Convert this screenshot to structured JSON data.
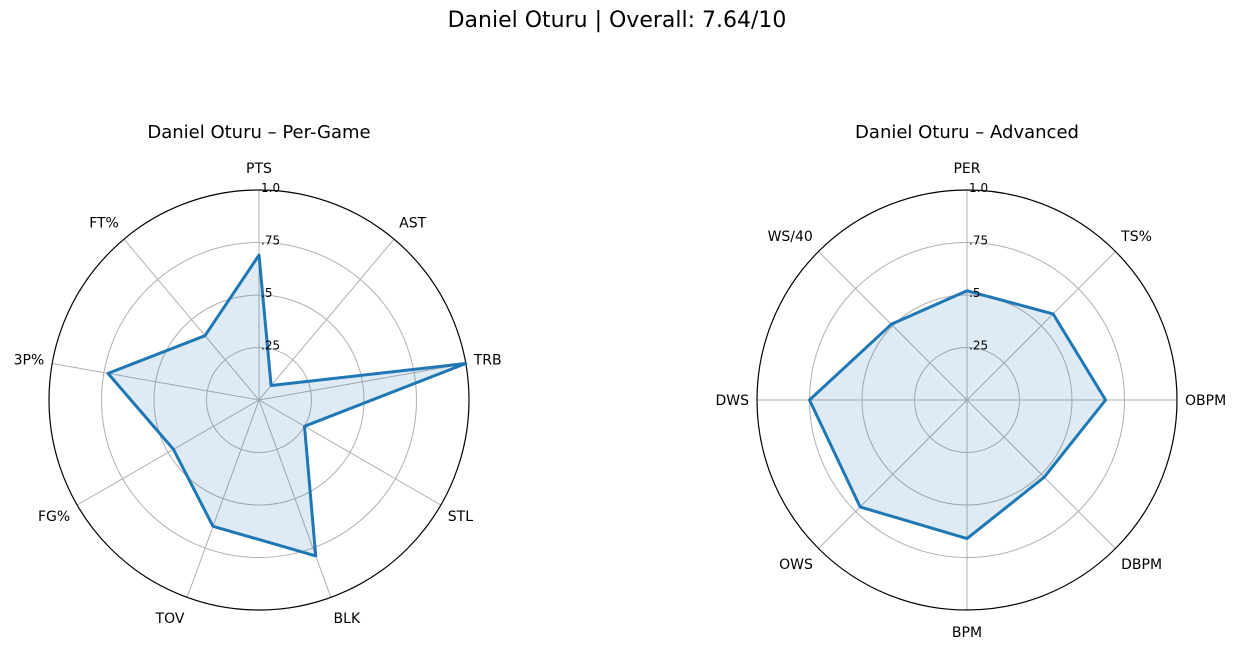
{
  "title": "Daniel Oturu | Overall: 7.64/10",
  "chart_data": [
    {
      "type": "radar",
      "title": "Daniel Oturu – Per-Game",
      "categories": [
        "PTS",
        "AST",
        "TRB",
        "STL",
        "BLK",
        "TOV",
        "FG%",
        "3P%",
        "FT%"
      ],
      "values": [
        0.69,
        0.09,
        1.0,
        0.25,
        0.79,
        0.64,
        0.47,
        0.73,
        0.4
      ],
      "rticks": [
        ".25",
        ".5",
        ".75",
        "1.0"
      ],
      "rlim": [
        0,
        1
      ],
      "color": "#1f77b4"
    },
    {
      "type": "radar",
      "title": "Daniel Oturu – Advanced",
      "categories": [
        "PER",
        "TS%",
        "OBPM",
        "DBPM",
        "BPM",
        "OWS",
        "DWS",
        "WS/40"
      ],
      "values": [
        0.52,
        0.58,
        0.66,
        0.52,
        0.66,
        0.72,
        0.75,
        0.51
      ],
      "rticks": [
        ".25",
        ".5",
        ".75",
        "1.0"
      ],
      "rlim": [
        0,
        1
      ],
      "color": "#1f77b4"
    }
  ]
}
